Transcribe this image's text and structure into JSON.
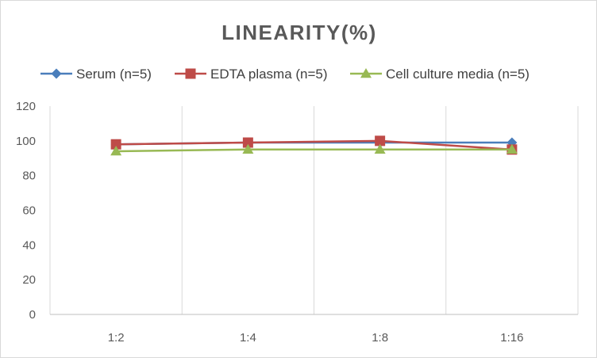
{
  "chart_data": {
    "type": "line",
    "title": "LINEARITY(%)",
    "xlabel": "",
    "ylabel": "",
    "categories": [
      "1:2",
      "1:4",
      "1:8",
      "1:16"
    ],
    "ylim": [
      0,
      120
    ],
    "yticks": [
      0,
      20,
      40,
      60,
      80,
      100,
      120
    ],
    "grid": "vertical",
    "legend_position": "top",
    "series": [
      {
        "name": "Serum (n=5)",
        "values": [
          98,
          99,
          99,
          99
        ],
        "color": "#4a7ebb",
        "marker": "diamond"
      },
      {
        "name": "EDTA plasma (n=5)",
        "values": [
          98,
          99,
          100,
          95
        ],
        "color": "#be4b48",
        "marker": "square"
      },
      {
        "name": "Cell culture media (n=5)",
        "values": [
          94,
          95,
          95,
          95
        ],
        "color": "#98b954",
        "marker": "triangle"
      }
    ]
  }
}
